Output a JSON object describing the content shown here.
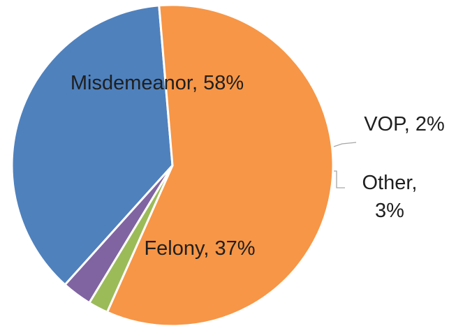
{
  "chart_data": {
    "type": "pie",
    "slices": [
      {
        "category": "Felony",
        "value": 37,
        "label": "Felony, 37%",
        "color": "#4f81bd"
      },
      {
        "category": "Misdemeanor",
        "value": 58,
        "label": "Misdemeanor, 58%",
        "color": "#f79646"
      },
      {
        "category": "VOP",
        "value": 2,
        "label": "VOP, 2%",
        "color": "#9bbb59"
      },
      {
        "category": "Other",
        "value": 3,
        "label_lines": [
          "Other,",
          "3%"
        ],
        "color": "#8064a2"
      }
    ],
    "legend": "none"
  }
}
